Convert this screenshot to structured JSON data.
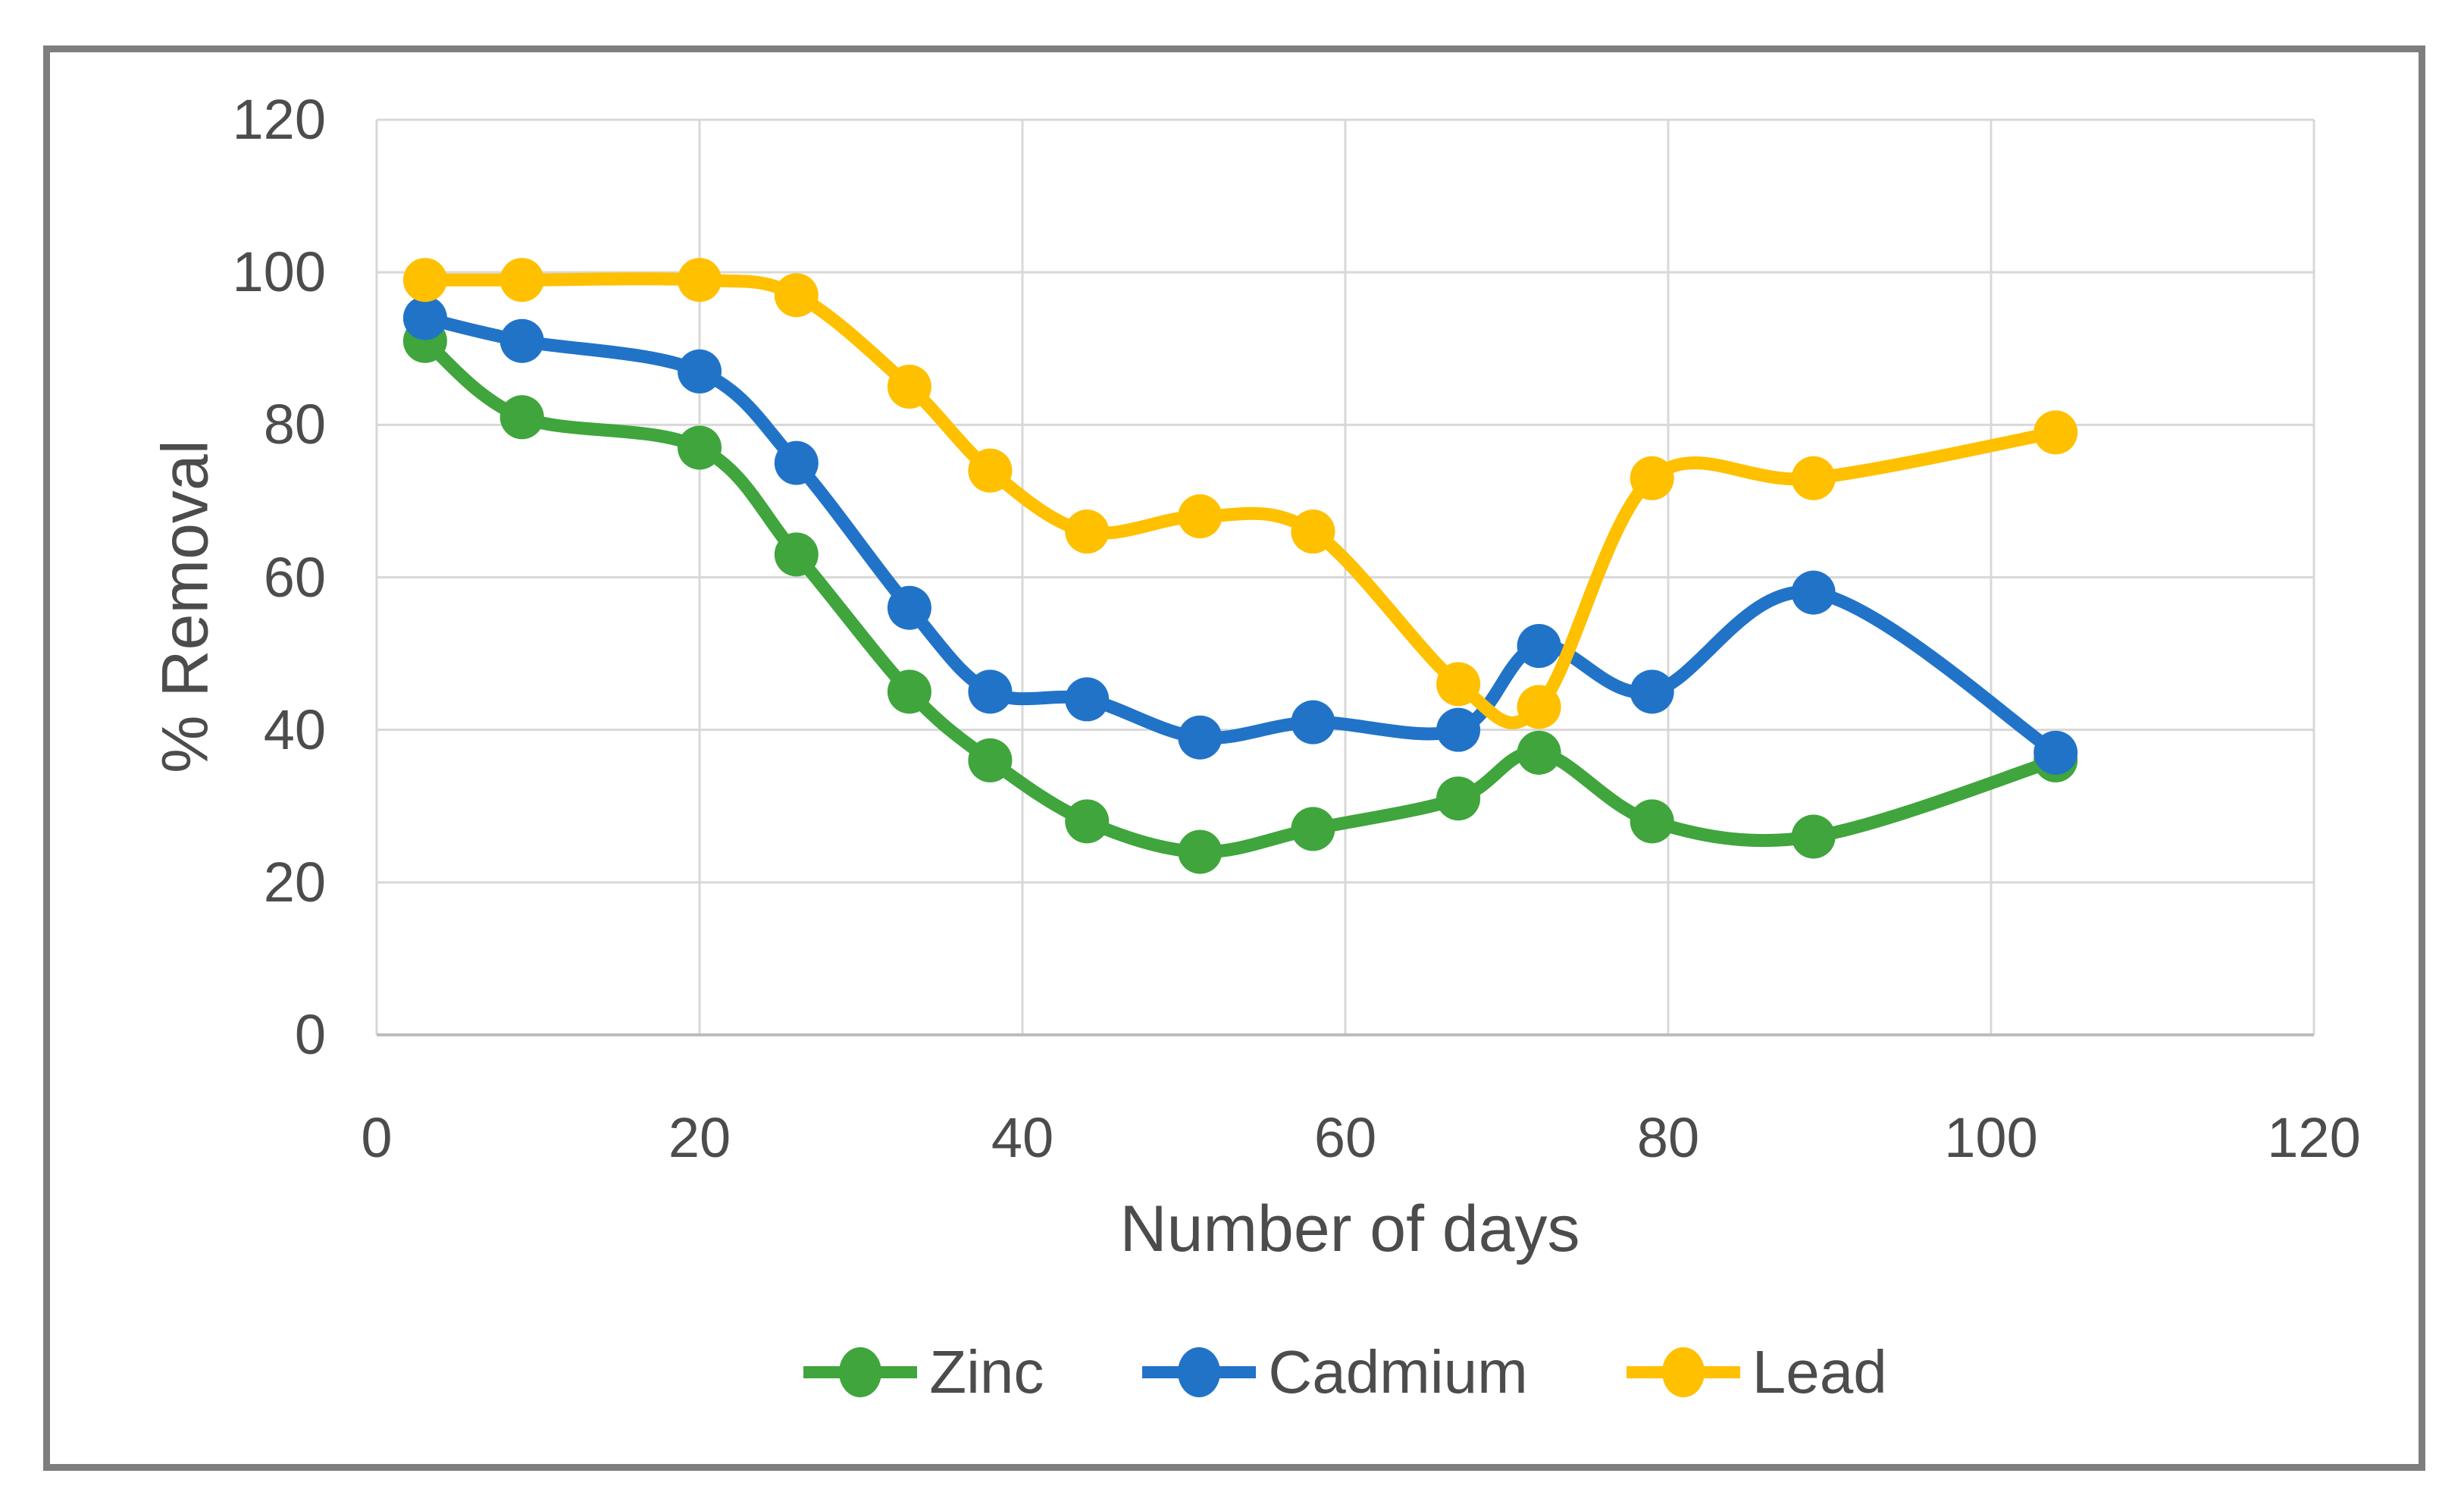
{
  "chart_data": {
    "type": "line",
    "title": "",
    "xlabel": "Number of days",
    "ylabel": "% Removal",
    "x": [
      3,
      9,
      20,
      26,
      33,
      38,
      44,
      51,
      58,
      67,
      72,
      79,
      89,
      104
    ],
    "series": [
      {
        "name": "Zinc",
        "color": "#3fa53c",
        "values": [
          91,
          81,
          77,
          63,
          45,
          36,
          28,
          24,
          27,
          31,
          37,
          28,
          26,
          36
        ]
      },
      {
        "name": "Cadmium",
        "color": "#2173c8",
        "values": [
          94,
          91,
          87,
          75,
          56,
          45,
          44,
          39,
          41,
          40,
          51,
          45,
          58,
          37
        ]
      },
      {
        "name": "Lead",
        "color": "#ffc000",
        "values": [
          99,
          99,
          99,
          97,
          85,
          74,
          66,
          68,
          66,
          46,
          43,
          73,
          73,
          79
        ]
      }
    ],
    "xlim": [
      0,
      120
    ],
    "ylim": [
      0,
      120
    ],
    "x_ticks": [
      0,
      20,
      40,
      60,
      80,
      100,
      120
    ],
    "y_ticks": [
      0,
      20,
      40,
      60,
      80,
      100,
      120
    ],
    "grid": true,
    "line_style": "smooth",
    "marker": "circle",
    "legend_position": "bottom"
  },
  "styles": {
    "grid_color": "#d8d8d8",
    "axis_color": "#bdbdbd",
    "text_color": "#4c4c4c",
    "frame_color": "#7e7e7e",
    "background": "#ffffff",
    "line_width": 17,
    "marker_radius": 29
  }
}
